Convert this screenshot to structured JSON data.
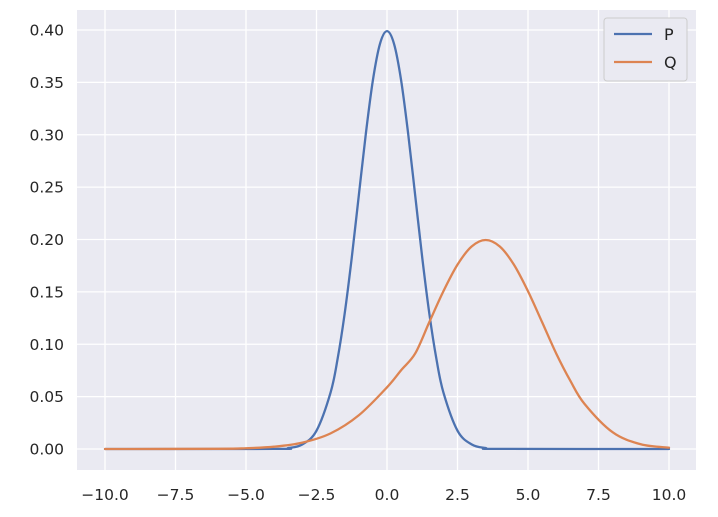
{
  "chart_data": {
    "type": "line",
    "title": "",
    "xlabel": "",
    "ylabel": "",
    "xlim": [
      -10.0,
      10.0
    ],
    "ylim": [
      0.0,
      0.4
    ],
    "grid": true,
    "legend": {
      "position": "top-right",
      "entries": [
        "P",
        "Q"
      ]
    },
    "x_ticks": [
      "−10.0",
      "−7.5",
      "−5.0",
      "−2.5",
      "0.0",
      "2.5",
      "5.0",
      "7.5",
      "10.0"
    ],
    "y_ticks": [
      "0.00",
      "0.05",
      "0.10",
      "0.15",
      "0.20",
      "0.25",
      "0.30",
      "0.35",
      "0.40"
    ],
    "series": [
      {
        "name": "P",
        "color": "#4c72b0",
        "x": [
          -10.0,
          -4.0,
          -3.5,
          -3.0,
          -2.5,
          -2.0,
          -1.75,
          -1.5,
          -1.25,
          -1.0,
          -0.75,
          -0.5,
          -0.25,
          0.0,
          0.25,
          0.5,
          0.75,
          1.0,
          1.25,
          1.5,
          1.75,
          2.0,
          2.5,
          3.0,
          3.5,
          4.0,
          10.0
        ],
        "y": [
          0.0,
          0.0001,
          0.0009,
          0.0044,
          0.0175,
          0.054,
          0.0863,
          0.1295,
          0.1826,
          0.242,
          0.3011,
          0.3521,
          0.3867,
          0.3989,
          0.3867,
          0.3521,
          0.3011,
          0.242,
          0.1826,
          0.1295,
          0.0863,
          0.054,
          0.0175,
          0.0044,
          0.0009,
          0.0001,
          0.0
        ]
      },
      {
        "name": "Q",
        "color": "#dd8452",
        "x": [
          -10.0,
          -6.0,
          -5.0,
          -4.0,
          -3.0,
          -2.0,
          -1.0,
          0.0,
          0.5,
          1.0,
          1.5,
          2.0,
          2.5,
          3.0,
          3.5,
          4.0,
          4.5,
          5.0,
          5.5,
          6.0,
          6.5,
          7.0,
          8.0,
          9.0,
          10.0
        ],
        "y": [
          0.0,
          0.0002,
          0.0007,
          0.0022,
          0.0061,
          0.0149,
          0.0322,
          0.0589,
          0.0752,
          0.0912,
          0.1211,
          0.1506,
          0.176,
          0.1933,
          0.1995,
          0.1933,
          0.176,
          0.1506,
          0.1211,
          0.0912,
          0.0652,
          0.0432,
          0.016,
          0.0045,
          0.0013
        ]
      }
    ]
  }
}
